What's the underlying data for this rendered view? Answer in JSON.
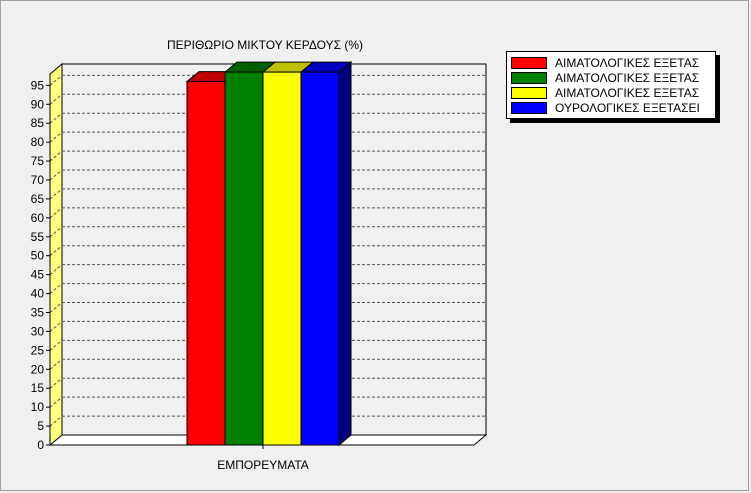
{
  "chart_data": {
    "type": "bar",
    "title": "ΠΕΡΙΘΩΡΙΟ ΜΙΚΤΟΥ ΚΕΡΔΟΥΣ (%)",
    "categories": [
      "ΕΜΠΟΡΕΥΜΑΤΑ"
    ],
    "series": [
      {
        "name": "ΑΙΜΑΤΟΛΟΓΙΚΕΣ ΕΞΕΤΑΣ",
        "color": "#ff0000",
        "values": [
          96
        ]
      },
      {
        "name": "ΑΙΜΑΤΟΛΟΓΙΚΕΣ ΕΞΕΤΑΣ",
        "color": "#008000",
        "values": [
          98.5
        ]
      },
      {
        "name": "ΑΙΜΑΤΟΛΟΓΙΚΕΣ ΕΞΕΤΑΣ",
        "color": "#ffff00",
        "values": [
          98.5
        ]
      },
      {
        "name": "ΟΥΡΟΛΟΓΙΚΕΣ ΕΞΕΤΑΣΕΙ",
        "color": "#0000ff",
        "values": [
          98.5
        ]
      }
    ],
    "ylim": [
      0,
      98
    ],
    "yticks": [
      "0",
      "5",
      "10",
      "15",
      "20",
      "25",
      "30",
      "35",
      "40",
      "45",
      "50",
      "55",
      "60",
      "65",
      "70",
      "75",
      "80",
      "85",
      "90",
      "95"
    ],
    "grid": true,
    "legend_position": "top-right",
    "style": "3d"
  }
}
